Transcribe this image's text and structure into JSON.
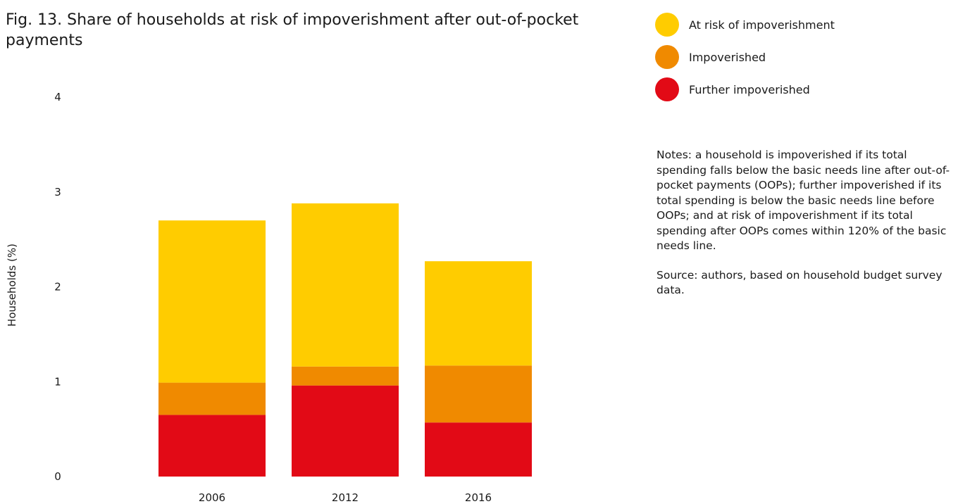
{
  "title": "Fig. 13. Share of households at risk of impoverishment after out-of-pocket payments",
  "notes": "Notes: a household is impoverished if its total spending falls below the basic needs line after out-of-pocket payments (OOPs); further impoverished if its total spending is below the basic needs line before OOPs; and at risk of impoverishment if its total spending after OOPs comes within 120% of the basic needs line.",
  "source": "Source: authors, based on household budget survey data.",
  "legend": [
    {
      "label": "At risk of impoverishment",
      "color": "#FFCC00"
    },
    {
      "label": "Impoverished",
      "color": "#F08A00"
    },
    {
      "label": "Further impoverished",
      "color": "#E20A16"
    }
  ],
  "chart_data": {
    "type": "bar",
    "stacked": true,
    "title": "Fig. 13. Share of households at risk of impoverishment after out-of-pocket payments",
    "ylabel": "Households (%)",
    "xlabel": "",
    "ylim": [
      0,
      4
    ],
    "yticks": [
      0,
      1,
      2,
      3,
      4
    ],
    "categories": [
      "2006",
      "2012",
      "2016"
    ],
    "grid": false,
    "legend_position": "top-right",
    "series": [
      {
        "name": "Further impoverished",
        "color": "#E20A16",
        "values": [
          0.65,
          0.96,
          0.57
        ]
      },
      {
        "name": "Impoverished",
        "color": "#F08A00",
        "values": [
          0.34,
          0.2,
          0.6
        ]
      },
      {
        "name": "At risk of impoverishment",
        "color": "#FFCC00",
        "values": [
          1.71,
          1.72,
          1.1
        ]
      }
    ]
  }
}
